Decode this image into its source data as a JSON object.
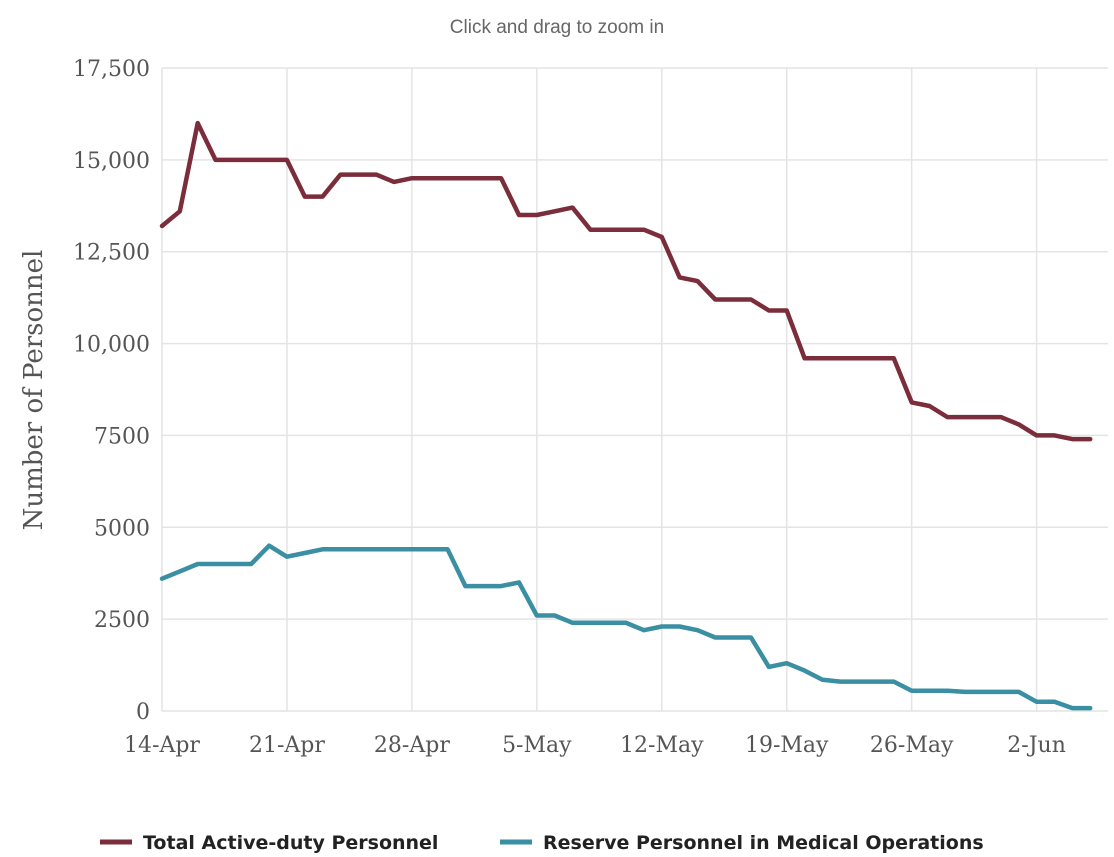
{
  "hint_text": "Click and drag to zoom in",
  "chart_data": {
    "type": "line",
    "title": "",
    "xlabel": "",
    "ylabel": "Number of Personnel",
    "ylim": [
      0,
      17500
    ],
    "yticks": [
      0,
      2500,
      5000,
      7500,
      10000,
      12500,
      15000,
      17500
    ],
    "ytick_labels": [
      "0",
      "2500",
      "5000",
      "7500",
      "10,000",
      "12,500",
      "15,000",
      "17,500"
    ],
    "xlim": [
      "2020-04-14",
      "2020-06-06"
    ],
    "xticks": [
      "2020-04-14",
      "2020-04-21",
      "2020-04-28",
      "2020-05-05",
      "2020-05-12",
      "2020-05-19",
      "2020-05-26",
      "2020-06-02"
    ],
    "xtick_labels": [
      "14-Apr",
      "21-Apr",
      "28-Apr",
      "5-May",
      "12-May",
      "19-May",
      "26-May",
      "2-Jun"
    ],
    "grid": true,
    "legend_position": "bottom",
    "series": [
      {
        "name": "Total Active-duty Personnel",
        "color": "#7b2d3b",
        "points": [
          [
            "2020-04-14",
            13200
          ],
          [
            "2020-04-15",
            13600
          ],
          [
            "2020-04-16",
            16000
          ],
          [
            "2020-04-17",
            15000
          ],
          [
            "2020-04-18",
            15000
          ],
          [
            "2020-04-19",
            15000
          ],
          [
            "2020-04-20",
            15000
          ],
          [
            "2020-04-21",
            15000
          ],
          [
            "2020-04-22",
            14000
          ],
          [
            "2020-04-23",
            14000
          ],
          [
            "2020-04-24",
            14600
          ],
          [
            "2020-04-25",
            14600
          ],
          [
            "2020-04-26",
            14600
          ],
          [
            "2020-04-27",
            14400
          ],
          [
            "2020-04-28",
            14500
          ],
          [
            "2020-04-29",
            14500
          ],
          [
            "2020-04-30",
            14500
          ],
          [
            "2020-05-01",
            14500
          ],
          [
            "2020-05-02",
            14500
          ],
          [
            "2020-05-03",
            14500
          ],
          [
            "2020-05-04",
            13500
          ],
          [
            "2020-05-05",
            13500
          ],
          [
            "2020-05-06",
            13600
          ],
          [
            "2020-05-07",
            13700
          ],
          [
            "2020-05-08",
            13100
          ],
          [
            "2020-05-09",
            13100
          ],
          [
            "2020-05-10",
            13100
          ],
          [
            "2020-05-11",
            13100
          ],
          [
            "2020-05-12",
            12900
          ],
          [
            "2020-05-13",
            11800
          ],
          [
            "2020-05-14",
            11700
          ],
          [
            "2020-05-15",
            11200
          ],
          [
            "2020-05-16",
            11200
          ],
          [
            "2020-05-17",
            11200
          ],
          [
            "2020-05-18",
            10900
          ],
          [
            "2020-05-19",
            10900
          ],
          [
            "2020-05-20",
            9600
          ],
          [
            "2020-05-21",
            9600
          ],
          [
            "2020-05-22",
            9600
          ],
          [
            "2020-05-23",
            9600
          ],
          [
            "2020-05-24",
            9600
          ],
          [
            "2020-05-25",
            9600
          ],
          [
            "2020-05-26",
            8400
          ],
          [
            "2020-05-27",
            8300
          ],
          [
            "2020-05-28",
            8000
          ],
          [
            "2020-05-29",
            8000
          ],
          [
            "2020-05-30",
            8000
          ],
          [
            "2020-05-31",
            8000
          ],
          [
            "2020-06-01",
            7800
          ],
          [
            "2020-06-02",
            7500
          ],
          [
            "2020-06-03",
            7500
          ],
          [
            "2020-06-04",
            7400
          ],
          [
            "2020-06-05",
            7400
          ]
        ]
      },
      {
        "name": "Reserve Personnel in Medical Operations",
        "color": "#3a8fa3",
        "points": [
          [
            "2020-04-14",
            3600
          ],
          [
            "2020-04-15",
            3800
          ],
          [
            "2020-04-16",
            4000
          ],
          [
            "2020-04-17",
            4000
          ],
          [
            "2020-04-18",
            4000
          ],
          [
            "2020-04-19",
            4000
          ],
          [
            "2020-04-20",
            4500
          ],
          [
            "2020-04-21",
            4200
          ],
          [
            "2020-04-22",
            4300
          ],
          [
            "2020-04-23",
            4400
          ],
          [
            "2020-04-24",
            4400
          ],
          [
            "2020-04-25",
            4400
          ],
          [
            "2020-04-26",
            4400
          ],
          [
            "2020-04-27",
            4400
          ],
          [
            "2020-04-28",
            4400
          ],
          [
            "2020-04-29",
            4400
          ],
          [
            "2020-04-30",
            4400
          ],
          [
            "2020-05-01",
            3400
          ],
          [
            "2020-05-02",
            3400
          ],
          [
            "2020-05-03",
            3400
          ],
          [
            "2020-05-04",
            3500
          ],
          [
            "2020-05-05",
            2600
          ],
          [
            "2020-05-06",
            2600
          ],
          [
            "2020-05-07",
            2400
          ],
          [
            "2020-05-08",
            2400
          ],
          [
            "2020-05-09",
            2400
          ],
          [
            "2020-05-10",
            2400
          ],
          [
            "2020-05-11",
            2200
          ],
          [
            "2020-05-12",
            2300
          ],
          [
            "2020-05-13",
            2300
          ],
          [
            "2020-05-14",
            2200
          ],
          [
            "2020-05-15",
            2000
          ],
          [
            "2020-05-16",
            2000
          ],
          [
            "2020-05-17",
            2000
          ],
          [
            "2020-05-18",
            1200
          ],
          [
            "2020-05-19",
            1300
          ],
          [
            "2020-05-20",
            1100
          ],
          [
            "2020-05-21",
            850
          ],
          [
            "2020-05-22",
            800
          ],
          [
            "2020-05-23",
            800
          ],
          [
            "2020-05-24",
            800
          ],
          [
            "2020-05-25",
            800
          ],
          [
            "2020-05-26",
            550
          ],
          [
            "2020-05-27",
            550
          ],
          [
            "2020-05-28",
            550
          ],
          [
            "2020-05-29",
            520
          ],
          [
            "2020-05-30",
            520
          ],
          [
            "2020-05-31",
            520
          ],
          [
            "2020-06-01",
            520
          ],
          [
            "2020-06-02",
            250
          ],
          [
            "2020-06-03",
            250
          ],
          [
            "2020-06-04",
            80
          ],
          [
            "2020-06-05",
            80
          ]
        ]
      }
    ]
  }
}
